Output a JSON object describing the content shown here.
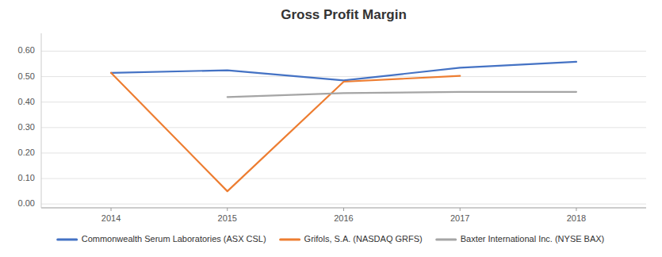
{
  "chart_data": {
    "type": "line",
    "title": "Gross Profit Margin",
    "x": [
      2014,
      2015,
      2016,
      2017,
      2018
    ],
    "series": [
      {
        "name": "Commonwealth Serum Laboratories (ASX CSL)",
        "color": "#4472C4",
        "values": [
          0.515,
          0.525,
          0.485,
          0.535,
          0.558
        ]
      },
      {
        "name": "Grifols, S.A. (NASDAQ GRFS)",
        "color": "#ED7D31",
        "values": [
          0.515,
          0.05,
          0.48,
          0.503,
          null
        ]
      },
      {
        "name": "Baxter International Inc. (NYSE BAX)",
        "color": "#A5A5A5",
        "values": [
          null,
          0.42,
          0.435,
          0.44,
          0.44
        ]
      }
    ],
    "xlim": [
      2013.4,
      2018.6
    ],
    "xticks": [
      2014,
      2015,
      2016,
      2017,
      2018
    ],
    "ylim": [
      -0.015,
      0.67
    ],
    "yticks": [
      {
        "value": 0.0,
        "label": "0.00"
      },
      {
        "value": 0.1,
        "label": "0.10"
      },
      {
        "value": 0.2,
        "label": "0.20"
      },
      {
        "value": 0.3,
        "label": "0.30"
      },
      {
        "value": 0.4,
        "label": "0.40"
      },
      {
        "value": 0.5,
        "label": "0.50"
      },
      {
        "value": 0.6,
        "label": "0.60"
      }
    ],
    "grid": true,
    "legend": "bottom"
  }
}
